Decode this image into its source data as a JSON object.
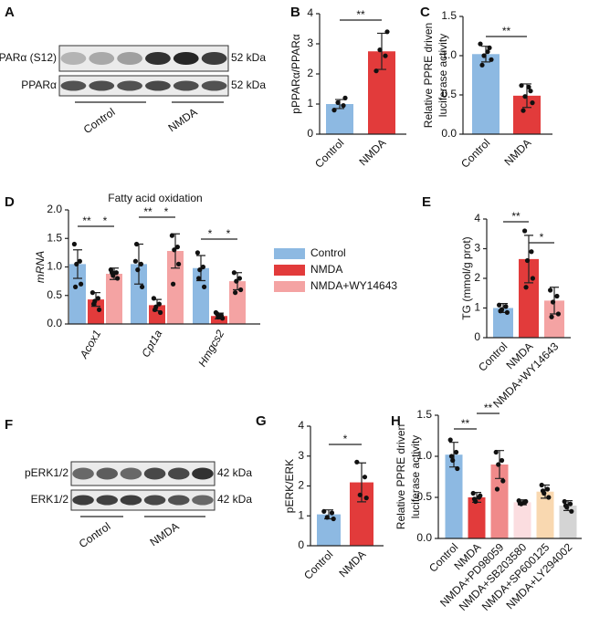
{
  "blots": [
    {
      "panel": "A",
      "rows": [
        {
          "label": "pPPARα (S12)",
          "size": "52 kDa"
        },
        {
          "label": "PPARα",
          "size": "52 kDa"
        }
      ],
      "groups": [
        "Control",
        "NMDA"
      ]
    },
    {
      "panel": "F",
      "rows": [
        {
          "label": "pERK1/2",
          "size": "42 kDa"
        },
        {
          "label": "ERK1/2",
          "size": "42 kDa"
        }
      ],
      "groups": [
        "Control",
        "NMDA"
      ]
    }
  ],
  "chart_data": [
    {
      "type": "bar",
      "panel": "B",
      "ylabel": [
        "pPPARα/PPARα"
      ],
      "categories": [
        "Control",
        "NMDA"
      ],
      "values": [
        1.0,
        2.75
      ],
      "errors": [
        0.15,
        0.6
      ],
      "colors": [
        "#8db9e2",
        "#e23b3b"
      ],
      "points": [
        [
          0.8,
          0.95,
          1.05,
          1.2
        ],
        [
          2.1,
          2.6,
          2.8,
          3.4
        ]
      ],
      "ylim": [
        0,
        4
      ],
      "yticks": [
        0,
        1,
        2,
        3,
        4
      ],
      "significance": [
        "**"
      ]
    },
    {
      "type": "bar",
      "panel": "C",
      "ylabel": [
        "Relative PPRE driven",
        "luciferase activity"
      ],
      "categories": [
        "Control",
        "NMDA"
      ],
      "values": [
        1.02,
        0.49
      ],
      "errors": [
        0.1,
        0.15
      ],
      "colors": [
        "#8db9e2",
        "#e23b3b"
      ],
      "points": [
        [
          1.15,
          1.1,
          1.0,
          0.95,
          0.88,
          1.05
        ],
        [
          0.62,
          0.55,
          0.48,
          0.4,
          0.3,
          0.6
        ]
      ],
      "ylim": [
        0,
        1.5
      ],
      "yticks": [
        {
          "value": 0,
          "label": "0.0"
        },
        0.5,
        {
          "value": 1,
          "label": "1.0"
        },
        1.5
      ],
      "significance": [
        "**"
      ]
    },
    {
      "type": "grouped_bar",
      "panel": "D",
      "title": "Fatty acid oxidation",
      "ylabel": [
        "mRNA"
      ],
      "categories": [
        "Acox1",
        "Cpt1a",
        "Hmgcs2"
      ],
      "series": [
        {
          "name": "Control",
          "color": "#8db9e2",
          "values": [
            1.05,
            1.05,
            0.98
          ],
          "errors": [
            0.25,
            0.35,
            0.22
          ],
          "points": [
            [
              1.4,
              1.1,
              1.05,
              0.7,
              0.65
            ],
            [
              1.1,
              1.05,
              0.95,
              0.65,
              1.4
            ],
            [
              1.25,
              1.0,
              0.95,
              0.65,
              0.8
            ]
          ]
        },
        {
          "name": "NMDA",
          "color": "#e23b3b",
          "values": [
            0.43,
            0.33,
            0.14
          ],
          "errors": [
            0.12,
            0.1,
            0.05
          ],
          "points": [
            [
              0.55,
              0.45,
              0.4,
              0.25,
              0.35
            ],
            [
              0.45,
              0.35,
              0.3,
              0.2,
              0.25
            ],
            [
              0.2,
              0.15,
              0.12,
              0.1,
              0.18
            ]
          ]
        },
        {
          "name": "NMDA+WY14643",
          "color": "#f4a3a3",
          "values": [
            0.88,
            1.28,
            0.75
          ],
          "errors": [
            0.1,
            0.3,
            0.15
          ],
          "points": [
            [
              0.95,
              0.9,
              0.85,
              0.8,
              0.9
            ],
            [
              1.55,
              1.35,
              1.3,
              1.05,
              0.7
            ],
            [
              0.9,
              0.8,
              0.75,
              0.6,
              0.55
            ]
          ]
        }
      ],
      "ylim": [
        0,
        2
      ],
      "yticks": [
        {
          "value": 0,
          "label": "0.0"
        },
        0.5,
        {
          "value": 1,
          "label": "1.0"
        },
        1.5,
        {
          "value": 2,
          "label": "2.0"
        }
      ],
      "significance": [
        "**",
        "*",
        "**",
        "*",
        "*",
        "*"
      ]
    },
    {
      "type": "bar",
      "panel": "E",
      "ylabel": [
        "TG (mmol/g prot)"
      ],
      "categories": [
        "Control",
        "NMDA",
        "NMDA+WY14643"
      ],
      "values": [
        1.0,
        2.65,
        1.25
      ],
      "errors": [
        0.15,
        0.8,
        0.45
      ],
      "colors": [
        "#8db9e2",
        "#e23b3b",
        "#f4a3a3"
      ],
      "points": [
        [
          1.1,
          1.05,
          0.95,
          0.85,
          0.9
        ],
        [
          3.6,
          2.9,
          2.6,
          2.0,
          1.7
        ],
        [
          1.6,
          1.4,
          1.2,
          0.8,
          0.7
        ]
      ],
      "ylim": [
        0,
        4
      ],
      "yticks": [
        0,
        1,
        2,
        3,
        4
      ],
      "significance": [
        "**",
        "*"
      ]
    },
    {
      "type": "bar",
      "panel": "G",
      "ylabel": [
        "pERK/ERK"
      ],
      "categories": [
        "Control",
        "NMDA"
      ],
      "values": [
        1.05,
        2.12
      ],
      "errors": [
        0.15,
        0.65
      ],
      "colors": [
        "#8db9e2",
        "#e23b3b"
      ],
      "points": [
        [
          1.15,
          1.1,
          0.95,
          0.9
        ],
        [
          2.8,
          2.3,
          1.7,
          1.6
        ]
      ],
      "ylim": [
        0,
        4
      ],
      "yticks": [
        0,
        1,
        2,
        3,
        4
      ],
      "significance": [
        "*"
      ]
    },
    {
      "type": "bar",
      "panel": "H",
      "ylabel": [
        "Relative PPRE driven",
        "luciferase activity"
      ],
      "categories": [
        "Control",
        "NMDA",
        "NMDA+PD98059",
        "NMDA+SB203580",
        "NMDA+SP600125",
        "NMDA+LY294002"
      ],
      "values": [
        1.02,
        0.5,
        0.9,
        0.44,
        0.57,
        0.4
      ],
      "errors": [
        0.15,
        0.06,
        0.17,
        0.03,
        0.08,
        0.06
      ],
      "colors": [
        "#8db9e2",
        "#e23b3b",
        "#f08a8a",
        "#fbdde0",
        "#f9d8b0",
        "#d4d4d4"
      ],
      "points": [
        [
          1.2,
          1.05,
          0.95,
          0.85,
          1.0
        ],
        [
          0.55,
          0.5,
          0.45,
          0.52,
          0.48
        ],
        [
          1.05,
          0.95,
          0.9,
          0.7,
          0.6
        ],
        [
          0.46,
          0.44,
          0.42,
          0.45,
          0.43
        ],
        [
          0.65,
          0.6,
          0.55,
          0.5,
          0.58
        ],
        [
          0.45,
          0.42,
          0.38,
          0.33,
          0.4
        ]
      ],
      "ylim": [
        0,
        1.5
      ],
      "yticks": [
        {
          "value": 0,
          "label": "0.0"
        },
        0.5,
        {
          "value": 1,
          "label": "1.0"
        },
        1.5
      ],
      "significance": [
        "**",
        "**"
      ]
    }
  ]
}
